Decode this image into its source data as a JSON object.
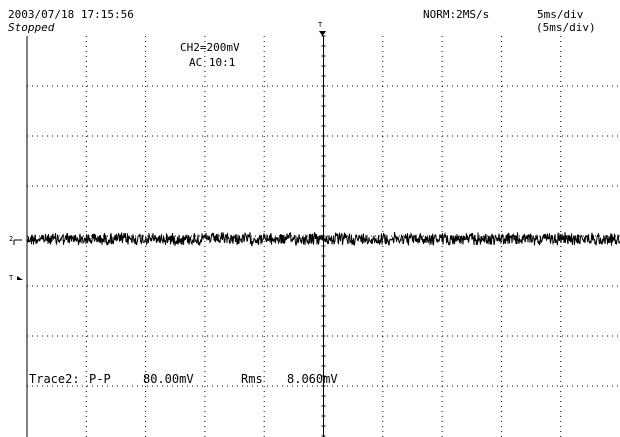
{
  "header": {
    "timestamp": "2003/07/18  17:15:56",
    "status": "Stopped",
    "acquisition": "NORM:2MS/s",
    "time_div": "5ms/div",
    "time_div_zoom": "(5ms/div)"
  },
  "channel": {
    "scale": "CH2=200mV",
    "coupling": "AC  10:1",
    "ground_marker": "2",
    "trigger_level_marker": "T",
    "trigger_pos_marker": "T"
  },
  "measurement": {
    "trace": "Trace2:",
    "pp_label": "P-P",
    "pp_value": "80.00mV",
    "rms_label": "Rms",
    "rms_value": "8.060mV"
  },
  "colors": {
    "trace": "#000000",
    "grid": "#000000",
    "background": "#ffffff"
  }
}
